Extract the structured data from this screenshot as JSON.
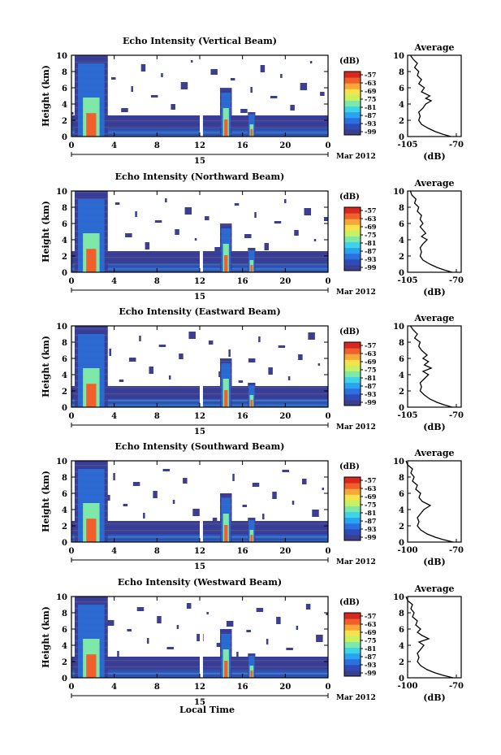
{
  "chart_data": {
    "type": "heatmap",
    "panels": [
      {
        "title": "Echo Intensity (Vertical Beam)",
        "profile_x_ticks": [
          -105,
          -70
        ],
        "profile": [
          [
            -74,
            0
          ],
          [
            -80,
            0.3
          ],
          [
            -85,
            0.6
          ],
          [
            -90,
            1.0
          ],
          [
            -95,
            1.5
          ],
          [
            -97,
            2.0
          ],
          [
            -96,
            2.5
          ],
          [
            -97,
            3.0
          ],
          [
            -94,
            3.5
          ],
          [
            -92,
            4.0
          ],
          [
            -88,
            4.4
          ],
          [
            -92,
            4.7
          ],
          [
            -89,
            5.0
          ],
          [
            -95,
            5.5
          ],
          [
            -93,
            6.0
          ],
          [
            -97,
            6.5
          ],
          [
            -95,
            7.0
          ],
          [
            -98,
            7.5
          ],
          [
            -97,
            8.0
          ],
          [
            -100,
            8.5
          ],
          [
            -98,
            9.0
          ],
          [
            -101,
            9.5
          ],
          [
            -103,
            10.0
          ]
        ]
      },
      {
        "title": "Echo Intensity (Northward Beam)",
        "profile_x_ticks": [
          -105,
          -70
        ],
        "profile": [
          [
            -73,
            0
          ],
          [
            -79,
            0.3
          ],
          [
            -84,
            0.6
          ],
          [
            -89,
            1.0
          ],
          [
            -94,
            1.5
          ],
          [
            -96,
            2.0
          ],
          [
            -95,
            2.5
          ],
          [
            -96,
            3.0
          ],
          [
            -94,
            3.5
          ],
          [
            -91,
            4.0
          ],
          [
            -95,
            4.4
          ],
          [
            -92,
            4.8
          ],
          [
            -94,
            5.2
          ],
          [
            -96,
            5.6
          ],
          [
            -94,
            6.0
          ],
          [
            -96,
            6.5
          ],
          [
            -95,
            7.0
          ],
          [
            -98,
            7.5
          ],
          [
            -97,
            8.0
          ],
          [
            -100,
            8.5
          ],
          [
            -99,
            9.0
          ],
          [
            -102,
            9.5
          ],
          [
            -103,
            10.0
          ]
        ]
      },
      {
        "title": "Echo Intensity (Eastward Beam)",
        "profile_x_ticks": [
          -105,
          -70
        ],
        "profile": [
          [
            -73,
            0
          ],
          [
            -79,
            0.3
          ],
          [
            -84,
            0.6
          ],
          [
            -89,
            1.0
          ],
          [
            -93,
            1.5
          ],
          [
            -96,
            2.0
          ],
          [
            -95,
            2.5
          ],
          [
            -96,
            3.0
          ],
          [
            -93,
            3.5
          ],
          [
            -90,
            4.0
          ],
          [
            -94,
            4.4
          ],
          [
            -88,
            4.8
          ],
          [
            -93,
            5.2
          ],
          [
            -90,
            5.6
          ],
          [
            -94,
            6.0
          ],
          [
            -91,
            6.4
          ],
          [
            -95,
            7.0
          ],
          [
            -97,
            7.5
          ],
          [
            -96,
            8.0
          ],
          [
            -100,
            8.5
          ],
          [
            -98,
            9.0
          ],
          [
            -101,
            9.5
          ],
          [
            -103,
            10.0
          ]
        ]
      },
      {
        "title": "Echo Intensity (Southward Beam)",
        "profile_x_ticks": [
          -100,
          -70
        ],
        "profile": [
          [
            -72,
            0
          ],
          [
            -78,
            0.3
          ],
          [
            -83,
            0.6
          ],
          [
            -88,
            1.0
          ],
          [
            -92,
            1.5
          ],
          [
            -94,
            2.0
          ],
          [
            -93,
            2.5
          ],
          [
            -94,
            3.0
          ],
          [
            -92,
            3.5
          ],
          [
            -90,
            4.0
          ],
          [
            -86,
            4.5
          ],
          [
            -91,
            5.0
          ],
          [
            -93,
            5.5
          ],
          [
            -92,
            6.0
          ],
          [
            -95,
            6.5
          ],
          [
            -94,
            7.0
          ],
          [
            -97,
            7.5
          ],
          [
            -96,
            8.0
          ],
          [
            -98,
            8.5
          ],
          [
            -97,
            9.0
          ],
          [
            -100,
            9.5
          ],
          [
            -101,
            10.0
          ]
        ]
      },
      {
        "title": "Echo Intensity (Westward Beam)",
        "profile_x_ticks": [
          -100,
          -70
        ],
        "profile": [
          [
            -72,
            0
          ],
          [
            -78,
            0.3
          ],
          [
            -83,
            0.6
          ],
          [
            -88,
            1.0
          ],
          [
            -92,
            1.5
          ],
          [
            -94,
            2.0
          ],
          [
            -93,
            2.5
          ],
          [
            -94,
            3.0
          ],
          [
            -92,
            3.5
          ],
          [
            -90,
            4.0
          ],
          [
            -93,
            4.4
          ],
          [
            -87,
            4.8
          ],
          [
            -91,
            5.2
          ],
          [
            -94,
            5.6
          ],
          [
            -92,
            6.0
          ],
          [
            -95,
            6.5
          ],
          [
            -94,
            7.0
          ],
          [
            -97,
            7.5
          ],
          [
            -96,
            8.0
          ],
          [
            -98,
            8.5
          ],
          [
            -97,
            9.0
          ],
          [
            -100,
            9.5
          ],
          [
            -101,
            10.0
          ]
        ]
      }
    ],
    "ylabel": "Height (km)",
    "y_ticks": [
      0,
      2,
      4,
      6,
      8,
      10
    ],
    "ylim": [
      0,
      10
    ],
    "x_ticks": [
      "0",
      "4",
      "8",
      "12",
      "16",
      "20",
      "0"
    ],
    "xlim": [
      0,
      24
    ],
    "date_day": "15",
    "date_month": "Mar 2012",
    "xlabel": "Local Time",
    "colorbar_unit": "(dB)",
    "colorbar_ticks": [
      "-57",
      "-63",
      "-69",
      "-75",
      "-81",
      "-87",
      "-93",
      "-99"
    ],
    "colorbar_colors": [
      "#3c3f8f",
      "#2e4bb8",
      "#2c6fe0",
      "#2aa3f0",
      "#3fd3e8",
      "#7de8a8",
      "#c8f060",
      "#f6e24a",
      "#f8a838",
      "#f0602c",
      "#d8281e"
    ],
    "profile_title": "Average",
    "profile_xlabel": "(dB)",
    "gap_hours": [
      12.0,
      12.3
    ],
    "rain_events": [
      {
        "start": 0.3,
        "end": 3.4,
        "top_km": 10.0,
        "peak_km": 4.8
      },
      {
        "start": 13.9,
        "end": 15.0,
        "top_km": 6.0,
        "peak_km": 3.5
      },
      {
        "start": 16.5,
        "end": 17.2,
        "top_km": 3.0,
        "peak_km": 1.5
      }
    ]
  }
}
